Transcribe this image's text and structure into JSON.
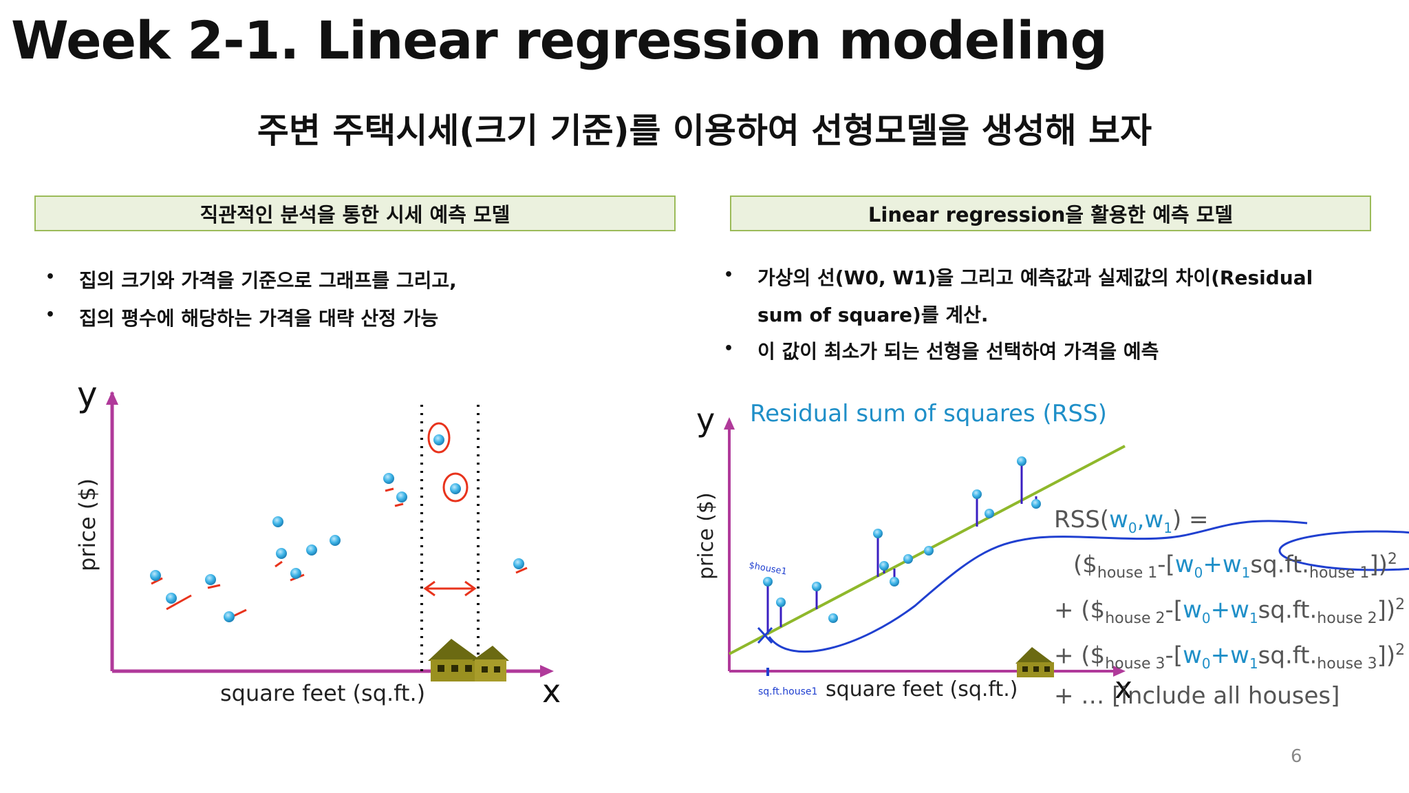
{
  "header": {
    "title": "Week 2-1. Linear regression modeling",
    "subtitle": "주변 주택시세(크기 기준)를 이용하여 선형모델을 생성해 보자"
  },
  "left_panel": {
    "heading": "직관적인 분석을 통한 시세 예측 모델",
    "bullets": [
      "집의 크기와 가격을 기준으로 그래프를 그리고,",
      "집의 평수에 해당하는 가격을 대략 산정 가능"
    ]
  },
  "right_panel": {
    "heading": "Linear regression을 활용한 예측 모델",
    "bullets": [
      "가상의 선(W0, W1)을 그리고 예측값과 실제값의 차이(Residual",
      "sum of square)를 계산.",
      "이 값이 최소가 되는 선형을 선택하여 가격을 예측"
    ]
  },
  "left_plot": {
    "y_axis_letter": "y",
    "x_axis_letter": "x",
    "ylabel": "price ($)",
    "xlabel": "square feet (sq.ft.)"
  },
  "right_plot": {
    "title": "Residual sum of squares (RSS)",
    "y_axis_letter": "y",
    "x_axis_letter": "x",
    "ylabel": "price ($)",
    "xlabel": "square feet (sq.ft.)",
    "annotation_price": "$house1",
    "annotation_sqft": "sq.ft.house1"
  },
  "rss_formula": {
    "line1": "RSS(w0,w1) =",
    "line2": "($house 1-[w0+w1sq.ft.house 1])2",
    "line3": "+ ($house 2-[w0+w1sq.ft.house 2])2",
    "line4": "+ ($house 3-[w0+w1sq.ft.house 3])2",
    "line5": "+ … [include all houses]"
  },
  "page_number": "6",
  "colors": {
    "axis": "#b03a9a",
    "point": "#3fb5e8",
    "red_mark": "#e8331c",
    "fit_line": "#8fb82b",
    "residual": "#3a1fc2",
    "rss_title": "#1f8fc8",
    "formula_blue": "#1f8fc8",
    "formula_gray": "#555555",
    "box_fill": "#ebf1de",
    "box_border": "#9bbb59"
  }
}
